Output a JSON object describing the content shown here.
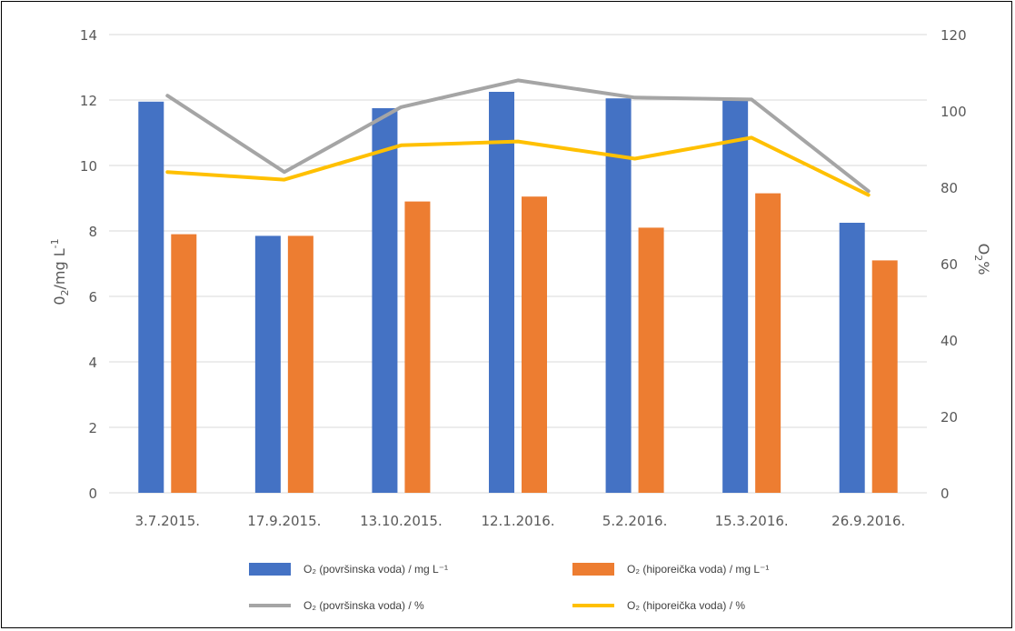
{
  "chart_data": {
    "type": "bar",
    "categories": [
      "3.7.2015.",
      "17.9.2015.",
      "13.10.2015.",
      "12.1.2016.",
      "5.2.2016.",
      "15.3.2016.",
      "26.9.2016."
    ],
    "series": [
      {
        "name": "O₂  (površinska voda) / mg L⁻¹",
        "kind": "bar",
        "axis": "left",
        "color": "#4472C4",
        "values": [
          11.95,
          7.85,
          11.75,
          12.25,
          12.05,
          12.0,
          8.25
        ]
      },
      {
        "name": "O₂  (hiporeička voda) / mg L⁻¹",
        "kind": "bar",
        "axis": "left",
        "color": "#ED7D31",
        "values": [
          7.9,
          7.85,
          8.9,
          9.05,
          8.1,
          9.15,
          7.1
        ]
      },
      {
        "name": "O₂ (površinska voda) / %",
        "kind": "line",
        "axis": "right",
        "color": "#A5A5A5",
        "values": [
          104,
          84,
          101,
          108,
          103.5,
          103,
          79
        ]
      },
      {
        "name": "O₂ (hiporeička voda) / %",
        "kind": "line",
        "axis": "right",
        "color": "#FFC000",
        "values": [
          84,
          82,
          91,
          92,
          87.5,
          93,
          78
        ]
      }
    ],
    "y_left": {
      "label_main": "0",
      "label_sub": "2",
      "label_rest": "/mg L",
      "label_sup": "-1",
      "ylim": [
        0,
        14
      ],
      "ticks": [
        "0",
        "2",
        "4",
        "6",
        "8",
        "10",
        "12",
        "14"
      ]
    },
    "y_right": {
      "label_main": "O",
      "label_sub": "2",
      "label_rest": "%",
      "ylim": [
        0,
        120
      ],
      "ticks": [
        "0",
        "20",
        "40",
        "60",
        "80",
        "100",
        "120"
      ]
    },
    "grid": true,
    "legend_position": "bottom"
  }
}
